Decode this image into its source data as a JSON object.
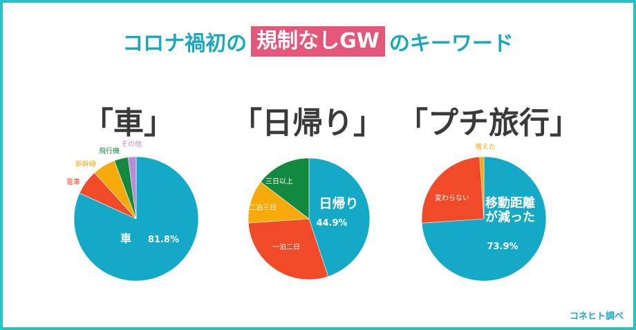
{
  "header": {
    "title_pre": "コロナ禍初の",
    "title_highlight": "規制なしGW",
    "title_post": "のキーワード"
  },
  "keywords": [
    "「車」",
    "「日帰り」",
    "「プチ旅行」"
  ],
  "source": "コネヒト調べ",
  "colors": {
    "frame": "#2bbfc6",
    "title": "#1aa8c0",
    "highlight": "#e4577a",
    "blue": "#14aac7",
    "red": "#f04a29",
    "orange": "#f7aa0a",
    "green": "#12893e",
    "purple": "#b98bd6"
  },
  "chart_data": [
    {
      "type": "pie",
      "slices": [
        {
          "label": "車",
          "value": 81.8,
          "value_label": "81.8%",
          "color": "#14aac7"
        },
        {
          "label": "電車",
          "value": 6.5,
          "color": "#f04a29"
        },
        {
          "label": "新幹線",
          "value": 6.0,
          "color": "#f7aa0a"
        },
        {
          "label": "飛行機",
          "value": 3.6,
          "color": "#12893e"
        },
        {
          "label": "その他",
          "value": 2.1,
          "color": "#b98bd6"
        }
      ]
    },
    {
      "type": "pie",
      "slices": [
        {
          "label": "日帰り",
          "value": 44.9,
          "value_label": "44.9%",
          "color": "#14aac7"
        },
        {
          "label": "一泊二日",
          "value": 29.0,
          "color": "#f04a29"
        },
        {
          "label": "二泊三日",
          "value": 11.5,
          "color": "#f7aa0a"
        },
        {
          "label": "三日以上",
          "value": 14.6,
          "color": "#12893e"
        }
      ]
    },
    {
      "type": "pie",
      "slices": [
        {
          "label": "移動距離が減った",
          "label_lines": [
            "移動距離",
            "が減った"
          ],
          "value": 73.9,
          "value_label": "73.9%",
          "color": "#14aac7"
        },
        {
          "label": "変わらない",
          "value": 25.0,
          "color": "#f04a29"
        },
        {
          "label": "増えた",
          "value": 1.1,
          "color": "#f7aa0a"
        }
      ]
    }
  ]
}
